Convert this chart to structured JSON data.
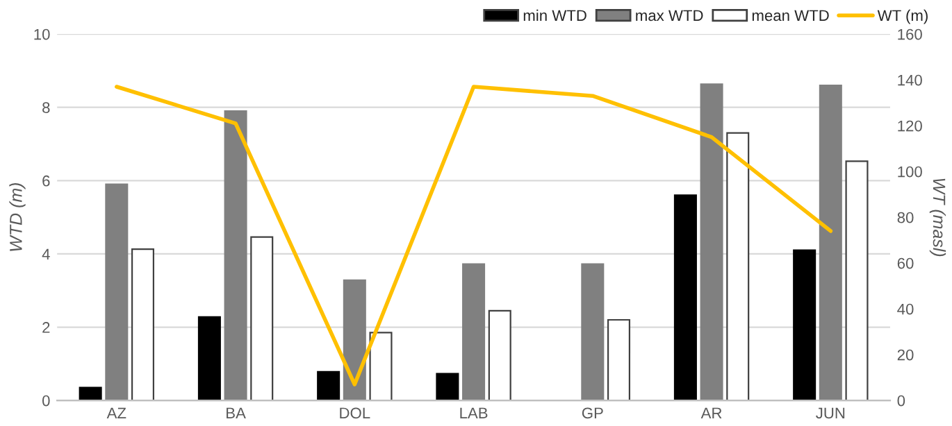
{
  "chart_data": {
    "type": "bar",
    "ylabel": "WTD (m)",
    "y2label": "WT (masl)",
    "categories": [
      "AZ",
      "BA",
      "DOL",
      "LAB",
      "GP",
      "AR",
      "JUN"
    ],
    "series": [
      {
        "name": "min WTD",
        "color": "#000000",
        "values": [
          0.35,
          2.28,
          0.78,
          0.73,
          null,
          5.6,
          4.1
        ]
      },
      {
        "name": "max WTD",
        "color": "#808080",
        "values": [
          5.9,
          7.9,
          3.28,
          3.72,
          3.72,
          8.63,
          8.6
        ]
      },
      {
        "name": "mean WTD",
        "color": "#ffffff",
        "values": [
          4.13,
          4.46,
          1.85,
          2.45,
          2.2,
          7.3,
          6.53
        ]
      },
      {
        "name": "WT (m)",
        "type": "line",
        "axis": "y2",
        "color": "#ffc000",
        "values": [
          137,
          121,
          7,
          137,
          133,
          115,
          74
        ]
      }
    ],
    "ylim": [
      0,
      10
    ],
    "yticks": [
      0,
      2,
      4,
      6,
      8,
      10
    ],
    "y2lim": [
      0,
      160
    ],
    "y2ticks": [
      0,
      20,
      40,
      60,
      80,
      100,
      120,
      140,
      160
    ],
    "grid": "y",
    "legend": "top right",
    "marker": "none",
    "line_style": "solid"
  }
}
